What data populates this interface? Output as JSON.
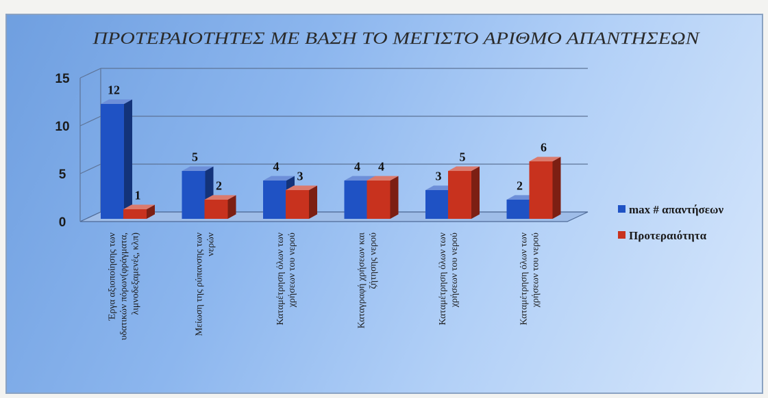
{
  "chart_data": {
    "type": "bar",
    "title": "ΠΡΟΤΕΡΑΙΟΤΗΤΕΣ ΜΕ ΒΑΣΗ ΤΟ ΜΕΓΙΣΤΟ ΑΡΙΘΜΟ ΑΠΑΝΤΗΣΕΩΝ",
    "categories": [
      [
        "Έργα αξιοποίησης των",
        "υδατικών πόρων(φράγματα,",
        "λιμνοδεξαμενές, κλπ)"
      ],
      [
        "Μείωση της ρύπανσης των",
        "νερών"
      ],
      [
        "Καταμέτρηση όλων των",
        "χρήσεων του νερού"
      ],
      [
        "Καταγραφή χρήσεων και",
        "ζήτησης νερού"
      ],
      [
        "Καταμέτρηση όλων των",
        "χρήσεων του νερού"
      ],
      [
        "Καταμέτρηση όλων των",
        "χρήσεων του νερού"
      ]
    ],
    "series": [
      {
        "name": "max # απαντήσεων",
        "values": [
          12,
          5,
          4,
          4,
          3,
          2
        ],
        "color": "#1f52c4"
      },
      {
        "name": "Προτεραιότητα",
        "values": [
          1,
          2,
          3,
          4,
          5,
          6
        ],
        "color": "#c8321e"
      }
    ],
    "yticks": [
      0,
      5,
      10,
      15
    ],
    "ylim": [
      0,
      15
    ],
    "grid": true,
    "legend_position": "right"
  }
}
